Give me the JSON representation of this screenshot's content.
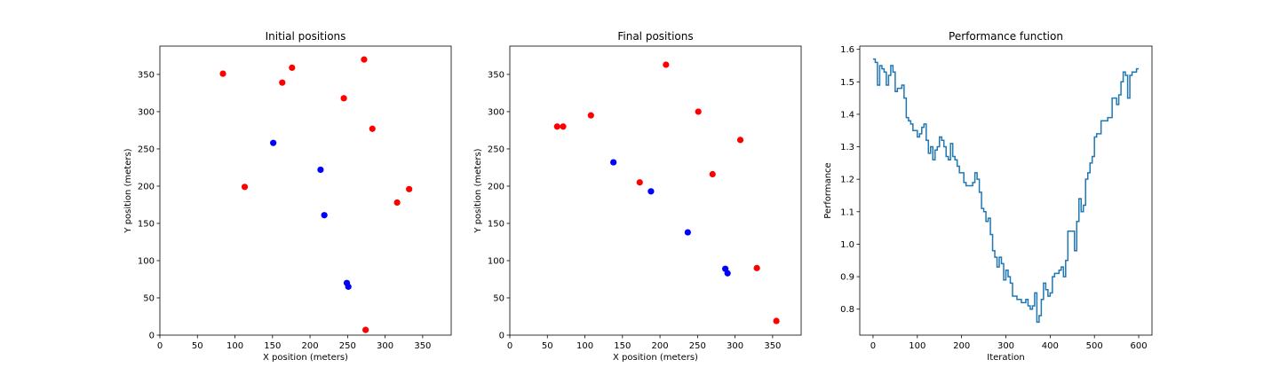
{
  "chart_data": [
    {
      "type": "scatter",
      "title": "Initial positions",
      "xlabel": "X position (meters)",
      "ylabel": "Y position (meters)",
      "xlim": [
        0,
        388
      ],
      "ylim": [
        0,
        388
      ],
      "xticks": [
        0,
        50,
        100,
        150,
        200,
        250,
        300,
        350
      ],
      "yticks": [
        0,
        50,
        100,
        150,
        200,
        250,
        300,
        350
      ],
      "grid": false,
      "series": [
        {
          "color": "#ff0000",
          "points": [
            [
              84,
              351
            ],
            [
              176,
              359
            ],
            [
              163,
              339
            ],
            [
              272,
              370
            ],
            [
              245,
              318
            ],
            [
              283,
              277
            ],
            [
              113,
              199
            ],
            [
              332,
              196
            ],
            [
              316,
              178
            ],
            [
              274,
              7
            ]
          ]
        },
        {
          "color": "#0000ff",
          "points": [
            [
              151,
              258
            ],
            [
              214,
              222
            ],
            [
              219,
              161
            ],
            [
              249,
              70
            ],
            [
              251,
              65
            ]
          ]
        }
      ]
    },
    {
      "type": "scatter",
      "title": "Final positions",
      "xlabel": "X position (meters)",
      "ylabel": "Y position (meters)",
      "xlim": [
        0,
        388
      ],
      "ylim": [
        0,
        388
      ],
      "xticks": [
        0,
        50,
        100,
        150,
        200,
        250,
        300,
        350
      ],
      "yticks": [
        0,
        50,
        100,
        150,
        200,
        250,
        300,
        350
      ],
      "grid": false,
      "series": [
        {
          "color": "#ff0000",
          "points": [
            [
              208,
              363
            ],
            [
              251,
              300
            ],
            [
              108,
              295
            ],
            [
              63,
              280
            ],
            [
              71,
              280
            ],
            [
              307,
              262
            ],
            [
              270,
              216
            ],
            [
              173,
              205
            ],
            [
              329,
              90
            ],
            [
              355,
              19
            ]
          ]
        },
        {
          "color": "#0000ff",
          "points": [
            [
              138,
              232
            ],
            [
              188,
              193
            ],
            [
              237,
              138
            ],
            [
              287,
              89
            ],
            [
              290,
              83
            ]
          ]
        }
      ]
    },
    {
      "type": "line",
      "title": "Performance function",
      "xlabel": "Iteration",
      "ylabel": "Performance",
      "xlim": [
        -30,
        630
      ],
      "ylim": [
        0.72,
        1.61
      ],
      "xticks": [
        0,
        100,
        200,
        300,
        400,
        500,
        600
      ],
      "yticks": [
        0.8,
        0.9,
        1.0,
        1.1,
        1.2,
        1.3,
        1.4,
        1.5,
        1.6
      ],
      "grid": false,
      "series": [
        {
          "color": "#1f77b4",
          "step": true,
          "x": [
            0,
            5,
            10,
            15,
            20,
            25,
            30,
            35,
            40,
            45,
            50,
            55,
            60,
            65,
            70,
            75,
            80,
            85,
            90,
            95,
            100,
            105,
            110,
            115,
            120,
            125,
            130,
            135,
            140,
            145,
            150,
            155,
            160,
            165,
            170,
            175,
            180,
            185,
            190,
            195,
            200,
            205,
            210,
            215,
            220,
            225,
            230,
            235,
            240,
            245,
            250,
            255,
            260,
            265,
            270,
            275,
            280,
            285,
            290,
            295,
            300,
            305,
            310,
            315,
            320,
            325,
            330,
            335,
            340,
            345,
            350,
            355,
            360,
            365,
            370,
            375,
            380,
            385,
            390,
            395,
            400,
            405,
            410,
            415,
            420,
            425,
            430,
            435,
            440,
            445,
            450,
            455,
            460,
            465,
            470,
            475,
            480,
            485,
            490,
            495,
            500,
            505,
            510,
            515,
            520,
            525,
            530,
            535,
            540,
            545,
            550,
            555,
            560,
            565,
            570,
            575,
            580,
            585,
            590,
            595,
            600
          ],
          "values": [
            1.57,
            1.56,
            1.49,
            1.55,
            1.54,
            1.53,
            1.49,
            1.52,
            1.55,
            1.53,
            1.47,
            1.48,
            1.48,
            1.49,
            1.45,
            1.39,
            1.38,
            1.37,
            1.35,
            1.35,
            1.33,
            1.34,
            1.36,
            1.37,
            1.32,
            1.28,
            1.3,
            1.26,
            1.29,
            1.3,
            1.33,
            1.32,
            1.3,
            1.27,
            1.26,
            1.31,
            1.27,
            1.26,
            1.24,
            1.22,
            1.22,
            1.19,
            1.18,
            1.18,
            1.18,
            1.19,
            1.22,
            1.2,
            1.16,
            1.11,
            1.1,
            1.07,
            1.08,
            1.03,
            0.98,
            0.96,
            0.93,
            0.96,
            0.94,
            0.89,
            0.92,
            0.9,
            0.88,
            0.84,
            0.84,
            0.83,
            0.83,
            0.82,
            0.82,
            0.83,
            0.81,
            0.8,
            0.81,
            0.85,
            0.76,
            0.78,
            0.83,
            0.88,
            0.86,
            0.84,
            0.85,
            0.9,
            0.91,
            0.91,
            0.92,
            0.93,
            0.9,
            0.95,
            1.04,
            1.04,
            1.04,
            0.98,
            1.07,
            1.14,
            1.1,
            1.12,
            1.2,
            1.22,
            1.25,
            1.27,
            1.33,
            1.34,
            1.34,
            1.38,
            1.38,
            1.38,
            1.39,
            1.39,
            1.45,
            1.45,
            1.43,
            1.46,
            1.5,
            1.53,
            1.52,
            1.45,
            1.52,
            1.53,
            1.53,
            1.54,
            1.54
          ]
        }
      ]
    }
  ]
}
